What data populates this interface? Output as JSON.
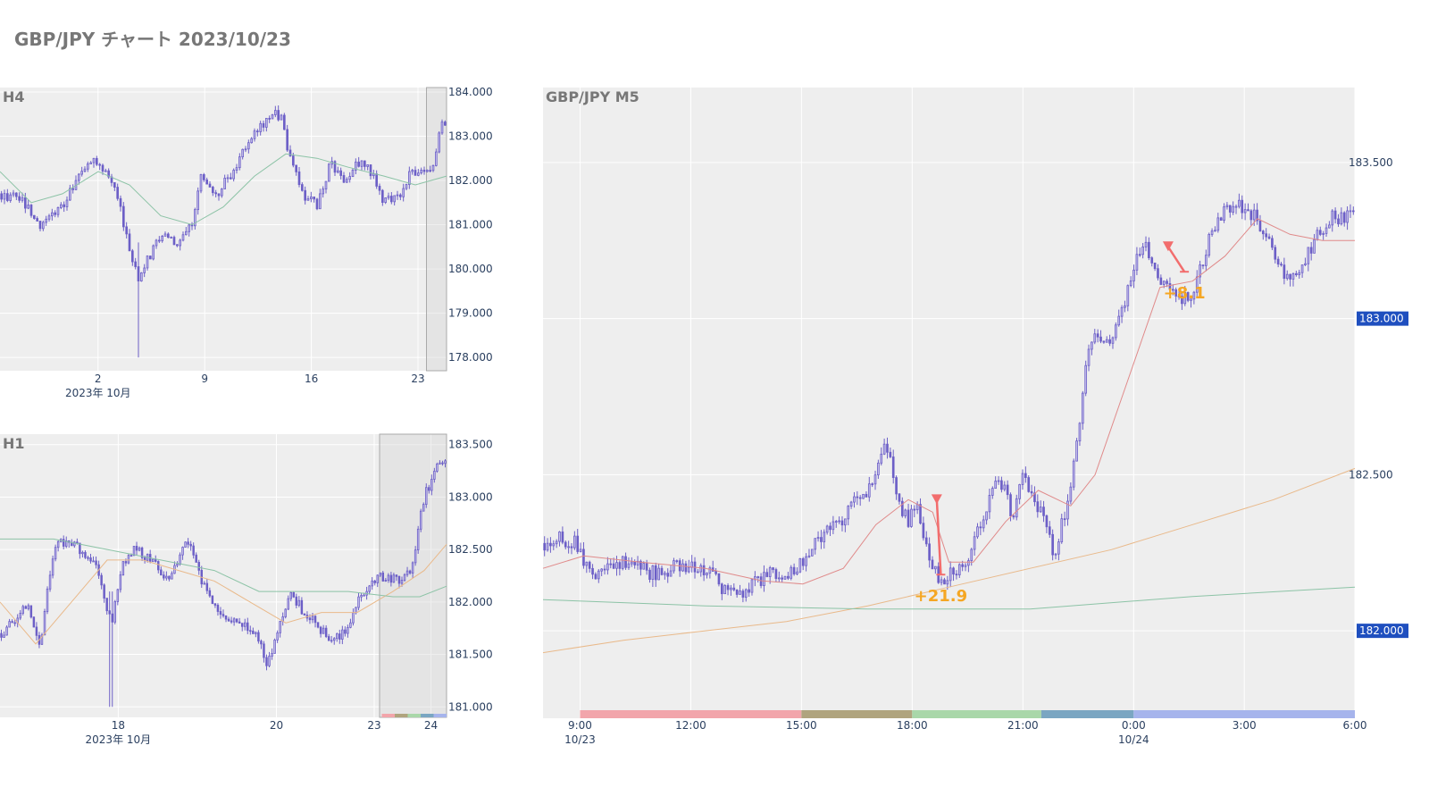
{
  "page": {
    "title": "GBP/JPY チャート 2023/10/23"
  },
  "colors": {
    "candle": "#6c5fc7",
    "panel_bg": "#eeeeee",
    "grid": "#ffffff",
    "ma_short": "#e08a8a",
    "ma_mid": "#e9b98a",
    "ma_long": "#8cc3a6",
    "pnl": "#f5a623",
    "trade_marker": "#f26d6d",
    "price_label_bg": "#1f4fbf",
    "sessions": [
      "#f2a5ab",
      "#b0a47e",
      "#a9d7a9",
      "#7aa6c2",
      "#a6b4ec"
    ]
  },
  "chart_data": [
    {
      "type": "candlestick",
      "title": "H4",
      "symbol": "GBP/JPY",
      "timeframe": "H4",
      "x_ticks": [
        {
          "t": 0.2195,
          "label": "2"
        },
        {
          "t": 0.4584,
          "label": "9"
        },
        {
          "t": 0.6972,
          "label": "16"
        },
        {
          "t": 0.936,
          "label": "23"
        }
      ],
      "x_secondary_label": {
        "t": 0.2195,
        "label": "2023年 10月"
      },
      "y_ticks": [
        184.0,
        183.0,
        182.0,
        181.0,
        180.0,
        179.0,
        178.0
      ],
      "y_tick_labels": [
        "184.000",
        "183.000",
        "182.000",
        "181.000",
        "180.000",
        "179.000",
        "178.000"
      ],
      "ylim": [
        177.7,
        184.1
      ],
      "highlight_range": [
        0.955,
        1.0
      ],
      "close_path": [
        [
          0.0,
          181.7
        ],
        [
          0.05,
          181.55
        ],
        [
          0.09,
          180.95
        ],
        [
          0.14,
          181.45
        ],
        [
          0.18,
          182.2
        ],
        [
          0.21,
          182.55
        ],
        [
          0.25,
          182.0
        ],
        [
          0.27,
          181.3
        ],
        [
          0.29,
          180.4
        ],
        [
          0.31,
          179.8
        ],
        [
          0.33,
          180.2
        ],
        [
          0.36,
          180.8
        ],
        [
          0.4,
          180.6
        ],
        [
          0.43,
          181.0
        ],
        [
          0.45,
          182.2
        ],
        [
          0.48,
          181.6
        ],
        [
          0.52,
          182.2
        ],
        [
          0.55,
          182.8
        ],
        [
          0.58,
          183.2
        ],
        [
          0.61,
          183.55
        ],
        [
          0.63,
          183.4
        ],
        [
          0.65,
          182.5
        ],
        [
          0.68,
          181.7
        ],
        [
          0.71,
          181.4
        ],
        [
          0.74,
          182.4
        ],
        [
          0.77,
          181.9
        ],
        [
          0.8,
          182.4
        ],
        [
          0.83,
          182.2
        ],
        [
          0.86,
          181.5
        ],
        [
          0.89,
          181.6
        ],
        [
          0.92,
          182.2
        ],
        [
          0.95,
          182.1
        ],
        [
          0.97,
          182.3
        ],
        [
          0.99,
          183.3
        ],
        [
          1.0,
          183.3
        ]
      ],
      "wicks": [
        {
          "x": 0.31,
          "low": 178.0,
          "high": 180.6
        }
      ],
      "moving_averages": [
        {
          "color_key": "ma_long",
          "points": [
            [
              0.0,
              182.2
            ],
            [
              0.07,
              181.5
            ],
            [
              0.14,
              181.7
            ],
            [
              0.22,
              182.2
            ],
            [
              0.29,
              181.9
            ],
            [
              0.36,
              181.2
            ],
            [
              0.43,
              181.0
            ],
            [
              0.5,
              181.4
            ],
            [
              0.57,
              182.1
            ],
            [
              0.64,
              182.6
            ],
            [
              0.71,
              182.5
            ],
            [
              0.78,
              182.3
            ],
            [
              0.86,
              182.1
            ],
            [
              0.93,
              181.9
            ],
            [
              1.0,
              182.1
            ]
          ]
        }
      ]
    },
    {
      "type": "candlestick",
      "title": "H1",
      "symbol": "GBP/JPY",
      "timeframe": "H1",
      "x_ticks": [
        {
          "t": 0.2647,
          "label": "18"
        },
        {
          "t": 0.619,
          "label": "20"
        },
        {
          "t": 0.838,
          "label": "23"
        },
        {
          "t": 0.965,
          "label": "24"
        }
      ],
      "x_secondary_label": {
        "t": 0.2647,
        "label": "2023年 10月"
      },
      "y_ticks": [
        183.5,
        183.0,
        182.5,
        182.0,
        181.5,
        181.0
      ],
      "y_tick_labels": [
        "183.500",
        "183.000",
        "182.500",
        "182.000",
        "181.500",
        "181.000"
      ],
      "ylim": [
        180.9,
        183.6
      ],
      "highlight_range": [
        0.85,
        1.0
      ],
      "close_path": [
        [
          0.0,
          181.7
        ],
        [
          0.03,
          181.8
        ],
        [
          0.06,
          182.0
        ],
        [
          0.09,
          181.6
        ],
        [
          0.12,
          182.5
        ],
        [
          0.15,
          182.6
        ],
        [
          0.18,
          182.5
        ],
        [
          0.21,
          182.4
        ],
        [
          0.25,
          181.8
        ],
        [
          0.27,
          182.3
        ],
        [
          0.3,
          182.5
        ],
        [
          0.34,
          182.4
        ],
        [
          0.38,
          182.2
        ],
        [
          0.42,
          182.6
        ],
        [
          0.45,
          182.2
        ],
        [
          0.49,
          181.9
        ],
        [
          0.53,
          181.8
        ],
        [
          0.57,
          181.7
        ],
        [
          0.6,
          181.4
        ],
        [
          0.62,
          181.7
        ],
        [
          0.65,
          182.1
        ],
        [
          0.68,
          181.9
        ],
        [
          0.71,
          181.8
        ],
        [
          0.74,
          181.6
        ],
        [
          0.77,
          181.7
        ],
        [
          0.8,
          182.0
        ],
        [
          0.83,
          182.2
        ],
        [
          0.86,
          182.25
        ],
        [
          0.89,
          182.2
        ],
        [
          0.92,
          182.3
        ],
        [
          0.95,
          183.0
        ],
        [
          0.98,
          183.3
        ],
        [
          1.0,
          183.3
        ]
      ],
      "wicks": [
        {
          "x": 0.25,
          "low": 181.0,
          "high": 182.1
        }
      ],
      "moving_averages": [
        {
          "color_key": "ma_mid",
          "points": [
            [
              0.0,
              182.0
            ],
            [
              0.08,
              181.6
            ],
            [
              0.16,
              182.0
            ],
            [
              0.24,
              182.4
            ],
            [
              0.32,
              182.4
            ],
            [
              0.4,
              182.3
            ],
            [
              0.48,
              182.2
            ],
            [
              0.56,
              182.0
            ],
            [
              0.64,
              181.8
            ],
            [
              0.72,
              181.9
            ],
            [
              0.8,
              181.9
            ],
            [
              0.88,
              182.1
            ],
            [
              0.95,
              182.3
            ],
            [
              1.0,
              182.55
            ]
          ]
        },
        {
          "color_key": "ma_long",
          "points": [
            [
              0.0,
              182.6
            ],
            [
              0.12,
              182.6
            ],
            [
              0.24,
              182.5
            ],
            [
              0.36,
              182.4
            ],
            [
              0.48,
              182.3
            ],
            [
              0.58,
              182.1
            ],
            [
              0.66,
              182.1
            ],
            [
              0.78,
              182.1
            ],
            [
              0.88,
              182.05
            ],
            [
              0.94,
              182.05
            ],
            [
              1.0,
              182.15
            ]
          ]
        }
      ],
      "session_bar_range": [
        0.855,
        1.0
      ]
    },
    {
      "type": "candlestick",
      "title": "GBP/JPY M5",
      "symbol": "GBP/JPY",
      "timeframe": "M5",
      "x_ticks": [
        {
          "t": 0.0456,
          "label": "9:00"
        },
        {
          "t": 0.182,
          "label": "12:00"
        },
        {
          "t": 0.3183,
          "label": "15:00"
        },
        {
          "t": 0.4547,
          "label": "18:00"
        },
        {
          "t": 0.5911,
          "label": "21:00"
        },
        {
          "t": 0.7275,
          "label": "0:00"
        },
        {
          "t": 0.8638,
          "label": "3:00"
        },
        {
          "t": 1.0,
          "label": "6:00"
        }
      ],
      "x_secondary_labels": [
        {
          "t": 0.0456,
          "label": "10/23"
        },
        {
          "t": 0.7275,
          "label": "10/24"
        }
      ],
      "y_ticks": [
        183.5,
        183.0,
        182.5,
        182.0
      ],
      "y_tick_labels": [
        "183.500",
        "183.000",
        "182.500",
        "182.000"
      ],
      "ylim": [
        181.72,
        183.74
      ],
      "current_price_labels": [
        {
          "price": 183.0,
          "label": "183.000"
        },
        {
          "price": 182.0,
          "label": "182.000"
        }
      ],
      "close_path": [
        [
          0.0,
          182.28
        ],
        [
          0.02,
          182.3
        ],
        [
          0.04,
          182.28
        ],
        [
          0.06,
          182.18
        ],
        [
          0.08,
          182.2
        ],
        [
          0.1,
          182.22
        ],
        [
          0.12,
          182.2
        ],
        [
          0.14,
          182.18
        ],
        [
          0.16,
          182.2
        ],
        [
          0.18,
          182.21
        ],
        [
          0.2,
          182.2
        ],
        [
          0.22,
          182.14
        ],
        [
          0.24,
          182.12
        ],
        [
          0.26,
          182.15
        ],
        [
          0.28,
          182.19
        ],
        [
          0.3,
          182.18
        ],
        [
          0.32,
          182.22
        ],
        [
          0.34,
          182.3
        ],
        [
          0.36,
          182.33
        ],
        [
          0.38,
          182.4
        ],
        [
          0.4,
          182.45
        ],
        [
          0.42,
          182.6
        ],
        [
          0.43,
          182.52
        ],
        [
          0.44,
          182.4
        ],
        [
          0.45,
          182.35
        ],
        [
          0.46,
          182.4
        ],
        [
          0.47,
          182.28
        ],
        [
          0.49,
          182.15
        ],
        [
          0.5,
          182.18
        ],
        [
          0.52,
          182.22
        ],
        [
          0.54,
          182.35
        ],
        [
          0.56,
          182.48
        ],
        [
          0.57,
          182.45
        ],
        [
          0.58,
          182.35
        ],
        [
          0.59,
          182.5
        ],
        [
          0.61,
          182.4
        ],
        [
          0.63,
          182.25
        ],
        [
          0.65,
          182.45
        ],
        [
          0.66,
          182.65
        ],
        [
          0.67,
          182.9
        ],
        [
          0.68,
          182.95
        ],
        [
          0.69,
          182.9
        ],
        [
          0.7,
          182.95
        ],
        [
          0.71,
          183.0
        ],
        [
          0.72,
          183.08
        ],
        [
          0.73,
          183.2
        ],
        [
          0.74,
          183.24
        ],
        [
          0.75,
          183.2
        ],
        [
          0.76,
          183.12
        ],
        [
          0.78,
          183.06
        ],
        [
          0.8,
          183.06
        ],
        [
          0.82,
          183.25
        ],
        [
          0.84,
          183.35
        ],
        [
          0.86,
          183.36
        ],
        [
          0.88,
          183.32
        ],
        [
          0.9,
          183.2
        ],
        [
          0.91,
          183.15
        ],
        [
          0.93,
          183.15
        ],
        [
          0.95,
          183.25
        ],
        [
          0.97,
          183.32
        ],
        [
          1.0,
          183.34
        ]
      ],
      "moving_averages": [
        {
          "color_key": "ma_short",
          "points": [
            [
              0.0,
              182.2
            ],
            [
              0.05,
              182.24
            ],
            [
              0.12,
              182.22
            ],
            [
              0.2,
              182.2
            ],
            [
              0.27,
              182.16
            ],
            [
              0.32,
              182.15
            ],
            [
              0.37,
              182.2
            ],
            [
              0.41,
              182.34
            ],
            [
              0.45,
              182.42
            ],
            [
              0.48,
              182.38
            ],
            [
              0.5,
              182.22
            ],
            [
              0.53,
              182.22
            ],
            [
              0.57,
              182.35
            ],
            [
              0.61,
              182.45
            ],
            [
              0.65,
              182.4
            ],
            [
              0.68,
              182.5
            ],
            [
              0.72,
              182.8
            ],
            [
              0.76,
              183.1
            ],
            [
              0.8,
              183.12
            ],
            [
              0.84,
              183.2
            ],
            [
              0.88,
              183.32
            ],
            [
              0.92,
              183.27
            ],
            [
              0.96,
              183.25
            ],
            [
              1.0,
              183.25
            ]
          ]
        },
        {
          "color_key": "ma_mid",
          "points": [
            [
              0.0,
              181.93
            ],
            [
              0.1,
              181.97
            ],
            [
              0.2,
              182.0
            ],
            [
              0.3,
              182.03
            ],
            [
              0.4,
              182.08
            ],
            [
              0.5,
              182.14
            ],
            [
              0.6,
              182.2
            ],
            [
              0.7,
              182.26
            ],
            [
              0.8,
              182.34
            ],
            [
              0.9,
              182.42
            ],
            [
              1.0,
              182.52
            ]
          ]
        },
        {
          "color_key": "ma_long",
          "points": [
            [
              0.0,
              182.1
            ],
            [
              0.2,
              182.08
            ],
            [
              0.4,
              182.07
            ],
            [
              0.6,
              182.07
            ],
            [
              0.8,
              182.11
            ],
            [
              1.0,
              182.14
            ]
          ]
        }
      ],
      "session_bands": [
        {
          "from": 0.0456,
          "to": 0.3183,
          "color_index": 0
        },
        {
          "from": 0.3183,
          "to": 0.4547,
          "color_index": 1
        },
        {
          "from": 0.4547,
          "to": 0.6138,
          "color_index": 2
        },
        {
          "from": 0.6138,
          "to": 0.7275,
          "color_index": 3
        },
        {
          "from": 0.7275,
          "to": 1.0,
          "color_index": 4
        }
      ],
      "trades": [
        {
          "entry_t": 0.485,
          "entry_price": 182.42,
          "exit_t": 0.49,
          "exit_price": 182.18,
          "pnl_label": "+21.9"
        },
        {
          "entry_t": 0.77,
          "entry_price": 183.23,
          "exit_t": 0.79,
          "exit_price": 183.15,
          "pnl_label": "+8.1"
        }
      ]
    }
  ]
}
